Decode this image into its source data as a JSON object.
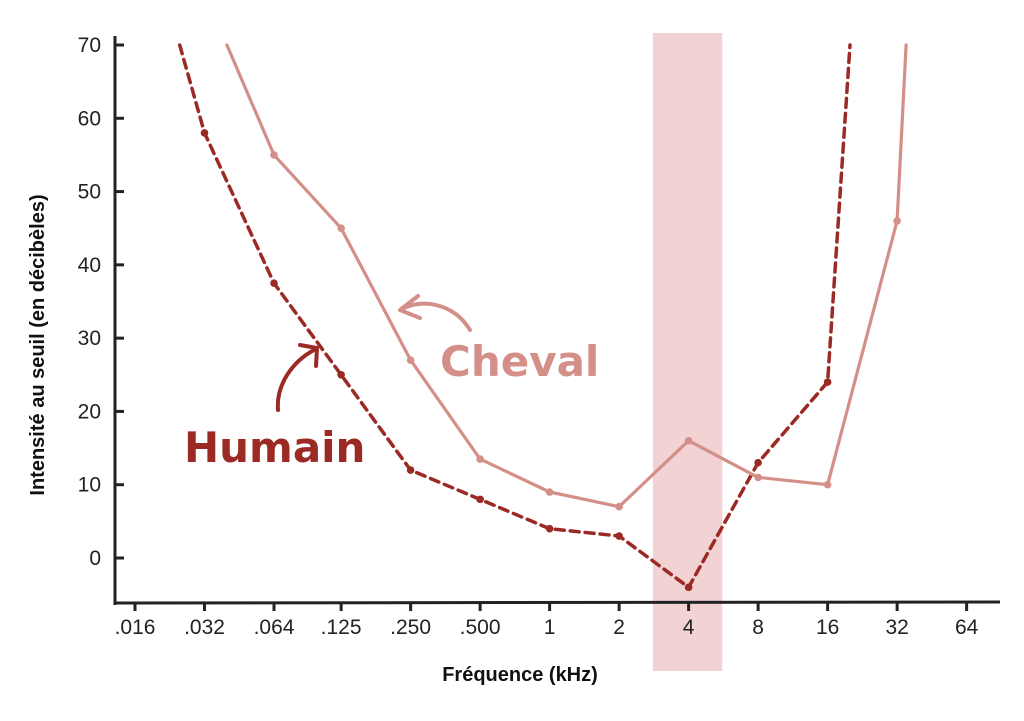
{
  "chart_data": {
    "type": "line",
    "xlabel": "Fréquence (kHz)",
    "ylabel": "Intensité au seuil (en décibèles)",
    "xscale": "log2",
    "x_ticks": [
      0.016,
      0.032,
      0.064,
      0.125,
      0.25,
      0.5,
      1,
      2,
      4,
      8,
      16,
      32,
      64
    ],
    "x_tick_labels": [
      ".016",
      ".032",
      ".064",
      ".125",
      ".250",
      ".500",
      "1",
      "2",
      "4",
      "8",
      "16",
      "32",
      "64"
    ],
    "y_ticks": [
      0,
      10,
      20,
      30,
      40,
      50,
      60,
      70
    ],
    "y_tick_labels": [
      "0",
      "10",
      "20",
      "30",
      "40",
      "50",
      "60",
      "70"
    ],
    "ylim": [
      -6,
      71
    ],
    "highlight_band_x": [
      2.8,
      5.6
    ],
    "highlight_color": "#f2d2d2",
    "series": [
      {
        "name": "Humain",
        "color": "#9b2a25",
        "dashed": true,
        "points": [
          [
            0.025,
            70
          ],
          [
            0.032,
            58
          ],
          [
            0.064,
            37.5
          ],
          [
            0.125,
            25
          ],
          [
            0.25,
            12
          ],
          [
            0.5,
            8
          ],
          [
            1,
            4
          ],
          [
            2,
            3
          ],
          [
            4,
            -4
          ],
          [
            8,
            13
          ],
          [
            16,
            24
          ],
          [
            20,
            70
          ]
        ]
      },
      {
        "name": "Cheval",
        "color": "#d48f89",
        "dashed": false,
        "points": [
          [
            0.04,
            70
          ],
          [
            0.064,
            55
          ],
          [
            0.125,
            45
          ],
          [
            0.25,
            27
          ],
          [
            0.5,
            13.5
          ],
          [
            1,
            9
          ],
          [
            2,
            7
          ],
          [
            4,
            16
          ],
          [
            8,
            11
          ],
          [
            16,
            10
          ],
          [
            32,
            46
          ],
          [
            35,
            70
          ]
        ]
      }
    ]
  }
}
